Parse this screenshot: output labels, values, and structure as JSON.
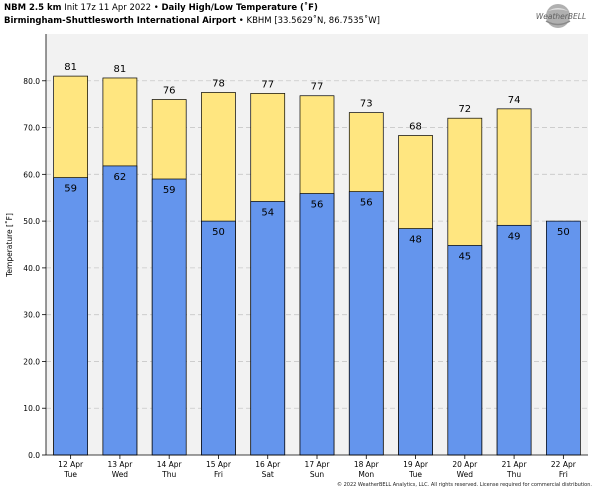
{
  "header": {
    "model": "NBM 2.5 km",
    "init": "Init 17z 11 Apr 2022",
    "sep": "•",
    "product": "Daily High/Low Temperature (˚F)",
    "station": "Birmingham-Shuttlesworth International Airport",
    "station_id": "KBHM [33.5629˚N, 86.7535˚W]"
  },
  "logo_text": "WeatherBELL",
  "copyright": "© 2022 WeatherBELL Analytics, LLC. All rights reserved. License required for commercial distribution.",
  "colors": {
    "high": "#ffe680",
    "low": "#6495ed",
    "plot_bg": "#f2f2f2",
    "grid": "#c8c8c8"
  },
  "chart_data": {
    "type": "bar",
    "ylabel": "Temperature [˚F]",
    "ylim": [
      0,
      90
    ],
    "yticks": [
      "0.0",
      "10.0",
      "20.0",
      "30.0",
      "40.0",
      "50.0",
      "60.0",
      "70.0",
      "80.0"
    ],
    "grid": true,
    "categories": [
      {
        "date": "12 Apr",
        "day": "Tue"
      },
      {
        "date": "13 Apr",
        "day": "Wed"
      },
      {
        "date": "14 Apr",
        "day": "Thu"
      },
      {
        "date": "15 Apr",
        "day": "Fri"
      },
      {
        "date": "16 Apr",
        "day": "Sat"
      },
      {
        "date": "17 Apr",
        "day": "Sun"
      },
      {
        "date": "18 Apr",
        "day": "Mon"
      },
      {
        "date": "19 Apr",
        "day": "Tue"
      },
      {
        "date": "20 Apr",
        "day": "Wed"
      },
      {
        "date": "21 Apr",
        "day": "Thu"
      },
      {
        "date": "22 Apr",
        "day": "Fri"
      }
    ],
    "series": [
      {
        "key": "high",
        "values": [
          81,
          80.6,
          76,
          77.5,
          77.3,
          76.8,
          73.2,
          68.3,
          72,
          74,
          null
        ],
        "labels": [
          "81",
          "81",
          "76",
          "78",
          "77",
          "77",
          "73",
          "68",
          "72",
          "74",
          null
        ]
      },
      {
        "key": "low",
        "values": [
          59.3,
          61.8,
          59,
          50,
          54.2,
          55.9,
          56.3,
          48.4,
          44.8,
          49.1,
          50
        ],
        "labels": [
          "59",
          "62",
          "59",
          "50",
          "54",
          "56",
          "56",
          "48",
          "45",
          "49",
          "50"
        ]
      }
    ]
  }
}
